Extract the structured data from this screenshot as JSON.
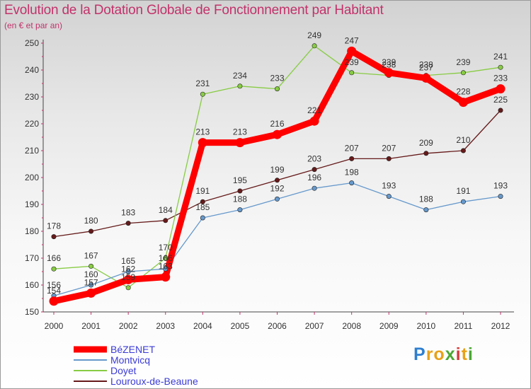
{
  "chart_data": {
    "type": "line",
    "title": "Evolution de la Dotation Globale de Fonctionnement par Habitant",
    "subtitle": "(en € et par an)",
    "x": [
      "2000",
      "2001",
      "2002",
      "2003",
      "2004",
      "2005",
      "2006",
      "2007",
      "2008",
      "2009",
      "2010",
      "2011",
      "2012"
    ],
    "ylim": [
      150,
      250
    ],
    "yticks": [
      150,
      160,
      170,
      180,
      190,
      200,
      210,
      220,
      230,
      240,
      250
    ],
    "grid": false,
    "legend_position": "bottom-left",
    "series": [
      {
        "name": "BéZENET",
        "color": "#ff0000",
        "values": [
          154,
          157,
          162,
          163,
          213,
          213,
          216,
          221,
          247,
          239,
          237,
          228,
          233
        ]
      },
      {
        "name": "Montvicq",
        "color": "#6699cc",
        "values": [
          156,
          160,
          165,
          166,
          185,
          188,
          192,
          196,
          198,
          193,
          188,
          191,
          193
        ]
      },
      {
        "name": "Doyet",
        "color": "#88cc44",
        "values": [
          166,
          167,
          159,
          170,
          231,
          234,
          233,
          249,
          239,
          238,
          238,
          239,
          241
        ]
      },
      {
        "name": "Louroux-de-Beaune",
        "color": "#661a1a",
        "values": [
          178,
          180,
          183,
          184,
          191,
          195,
          199,
          203,
          207,
          207,
          209,
          210,
          225
        ]
      }
    ]
  },
  "brand": {
    "letters": [
      "P",
      "r",
      "o",
      "x",
      "i",
      "t",
      "i"
    ],
    "colors": [
      "#2d7fd0",
      "#e8a117",
      "#e8a117",
      "#4aa832",
      "#d93a3a",
      "#e8a117",
      "#4aa832"
    ]
  }
}
